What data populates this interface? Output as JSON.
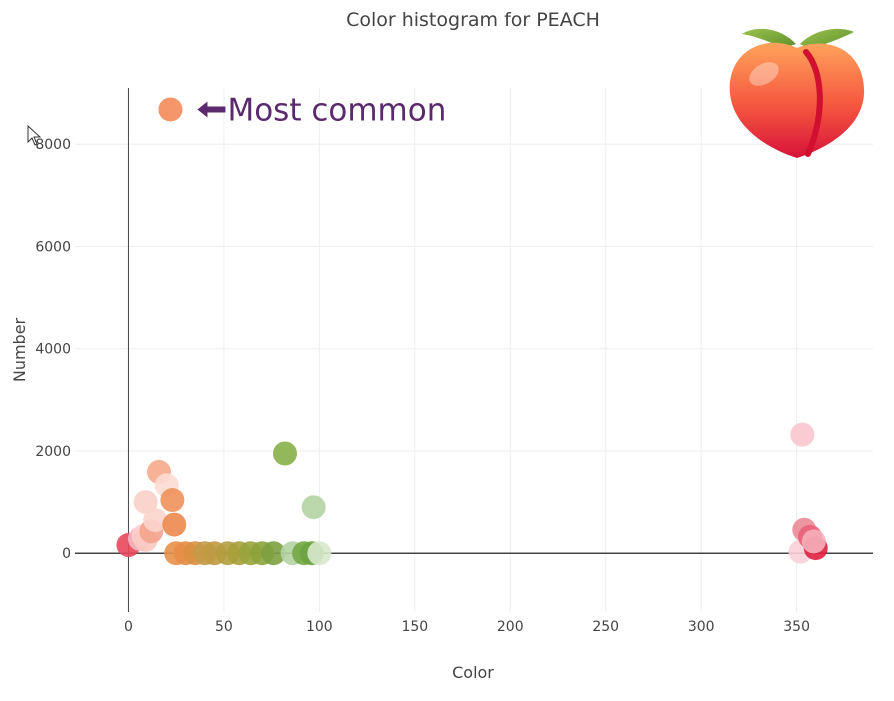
{
  "chart_data": {
    "type": "scatter",
    "title": "Color histogram for PEACH",
    "xlabel": "Color",
    "ylabel": "Number",
    "xlim": [
      -28,
      390
    ],
    "ylim": [
      -1150,
      9100
    ],
    "x_ticks": [
      0,
      50,
      100,
      150,
      200,
      250,
      300,
      350
    ],
    "y_ticks": [
      0,
      2000,
      4000,
      6000,
      8000
    ],
    "x_tick_labels": [
      "0",
      "50",
      "100",
      "150",
      "200",
      "250",
      "300",
      "350"
    ],
    "y_tick_labels": [
      "0",
      "2000",
      "4000",
      "6000",
      "8000"
    ],
    "grid": true,
    "zero_line": true,
    "annotation": {
      "text": "Most common",
      "color": "#F4956A",
      "x": 22,
      "y": 8680
    },
    "points": [
      {
        "x": 0,
        "y": 160,
        "color": "#E8475C"
      },
      {
        "x": 6,
        "y": 280,
        "color": "#F5B7C0"
      },
      {
        "x": 8,
        "y": 340,
        "color": "#FAD0D6"
      },
      {
        "x": 9,
        "y": 260,
        "color": "#F9C9C0"
      },
      {
        "x": 9,
        "y": 1000,
        "color": "#FAD0C8"
      },
      {
        "x": 12,
        "y": 430,
        "color": "#F4A48C"
      },
      {
        "x": 14,
        "y": 650,
        "color": "#FBD4CC"
      },
      {
        "x": 16,
        "y": 1590,
        "color": "#F6A88C"
      },
      {
        "x": 20,
        "y": 1330,
        "color": "#FCDCD2"
      },
      {
        "x": 23,
        "y": 1040,
        "color": "#F0915A"
      },
      {
        "x": 24,
        "y": 560,
        "color": "#EC8A4E"
      },
      {
        "x": 25,
        "y": 0,
        "color": "#E89048"
      },
      {
        "x": 30,
        "y": 0,
        "color": "#E48E48"
      },
      {
        "x": 35,
        "y": 0,
        "color": "#D99040"
      },
      {
        "x": 40,
        "y": 0,
        "color": "#C49A48"
      },
      {
        "x": 45,
        "y": 0,
        "color": "#C09A40"
      },
      {
        "x": 52,
        "y": 0,
        "color": "#B49C3E"
      },
      {
        "x": 58,
        "y": 0,
        "color": "#A8A03A"
      },
      {
        "x": 64,
        "y": 0,
        "color": "#99A43C"
      },
      {
        "x": 70,
        "y": 0,
        "color": "#8CA43C"
      },
      {
        "x": 76,
        "y": 0,
        "color": "#7CA040"
      },
      {
        "x": 82,
        "y": 1950,
        "color": "#86B048"
      },
      {
        "x": 86,
        "y": 0,
        "color": "#B4D4A4"
      },
      {
        "x": 92,
        "y": 0,
        "color": "#74A844"
      },
      {
        "x": 96,
        "y": 0,
        "color": "#6CA442"
      },
      {
        "x": 97,
        "y": 900,
        "color": "#B4D4A4"
      },
      {
        "x": 100,
        "y": 0,
        "color": "#D8E8CC"
      },
      {
        "x": 352,
        "y": 30,
        "color": "#FAD0D8"
      },
      {
        "x": 353,
        "y": 2320,
        "color": "#F8C6CE"
      },
      {
        "x": 354,
        "y": 460,
        "color": "#EC8A98"
      },
      {
        "x": 357,
        "y": 320,
        "color": "#E8607A"
      },
      {
        "x": 360,
        "y": 100,
        "color": "#E02040"
      },
      {
        "x": 359,
        "y": 230,
        "color": "#F5AFBA"
      }
    ]
  },
  "icons": {
    "cursor": "mouse-pointer-icon",
    "peach": "peach-emoji-icon"
  },
  "colors": {
    "annotation_text": "#5B2A6E",
    "grid": "#EEEEEE",
    "axis_line": "#444444"
  }
}
